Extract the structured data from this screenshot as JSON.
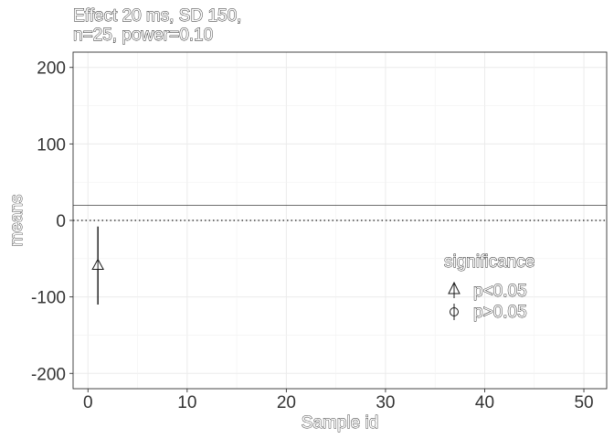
{
  "chart_data": {
    "type": "scatter",
    "title_lines": [
      "Effect 20 ms, SD 150,",
      "n=25, power=0.10"
    ],
    "xlabel": "Sample id",
    "ylabel": "means",
    "xlim": [
      -1.5,
      52.3
    ],
    "ylim": [
      -220,
      220
    ],
    "xticks": [
      0,
      10,
      20,
      30,
      40,
      50
    ],
    "xtick_labels": [
      "0",
      "10",
      "20",
      "30",
      "40",
      "50"
    ],
    "yticks": [
      200,
      100,
      0,
      -100,
      -200
    ],
    "ytick_labels": [
      "200",
      "100",
      "0",
      "-100",
      "-200"
    ],
    "grid": true,
    "reference_lines": {
      "true_effect": 20,
      "null": 0
    },
    "points": [
      {
        "id": 1,
        "mean": -58,
        "ci_low": -110,
        "ci_high": -8,
        "significance": "p<0.05"
      }
    ],
    "legend": {
      "title": "significance",
      "position": "right",
      "entries": [
        {
          "label": "p<0.05",
          "shape": "triangle"
        },
        {
          "label": "p>0.05",
          "shape": "circle"
        }
      ]
    }
  }
}
